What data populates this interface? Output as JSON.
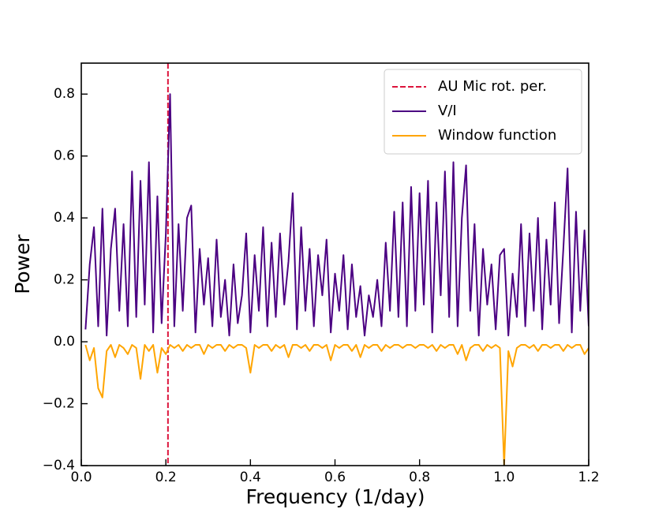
{
  "chart_data": {
    "type": "line",
    "xlabel": "Frequency (1/day)",
    "ylabel": "Power",
    "xlim": [
      0,
      1.2
    ],
    "ylim": [
      -0.4,
      0.9
    ],
    "xticks": [
      {
        "value": 0,
        "label": "0.0"
      },
      0.2,
      0.4,
      0.6,
      0.8,
      {
        "value": 1,
        "label": "1.0"
      },
      1.2
    ],
    "yticks": [
      {
        "value": -0.4,
        "label": "−0.4"
      },
      {
        "value": -0.2,
        "label": "−0.2"
      },
      {
        "value": 0,
        "label": "0.0"
      },
      0.2,
      0.4,
      0.6,
      0.8
    ],
    "legend": "upper right",
    "vlines": [
      {
        "name": "AU Mic rot. per.",
        "x": 0.205,
        "color": "#dc143c",
        "style": "dashed"
      }
    ],
    "x": [
      0.01,
      0.02,
      0.03,
      0.04,
      0.05,
      0.06,
      0.07,
      0.08,
      0.09,
      0.1,
      0.11,
      0.12,
      0.13,
      0.14,
      0.15,
      0.16,
      0.17,
      0.18,
      0.19,
      0.2,
      0.21,
      0.22,
      0.23,
      0.24,
      0.25,
      0.26,
      0.27,
      0.28,
      0.29,
      0.3,
      0.31,
      0.32,
      0.33,
      0.34,
      0.35,
      0.36,
      0.37,
      0.38,
      0.39,
      0.4,
      0.41,
      0.42,
      0.43,
      0.44,
      0.45,
      0.46,
      0.47,
      0.48,
      0.49,
      0.5,
      0.51,
      0.52,
      0.53,
      0.54,
      0.55,
      0.56,
      0.57,
      0.58,
      0.59,
      0.6,
      0.61,
      0.62,
      0.63,
      0.64,
      0.65,
      0.66,
      0.67,
      0.68,
      0.69,
      0.7,
      0.71,
      0.72,
      0.73,
      0.74,
      0.75,
      0.76,
      0.77,
      0.78,
      0.79,
      0.8,
      0.81,
      0.82,
      0.83,
      0.84,
      0.85,
      0.86,
      0.87,
      0.88,
      0.89,
      0.9,
      0.91,
      0.92,
      0.93,
      0.94,
      0.95,
      0.96,
      0.97,
      0.98,
      0.99,
      1,
      1.01,
      1.02,
      1.03,
      1.04,
      1.05,
      1.06,
      1.07,
      1.08,
      1.09,
      1.1,
      1.11,
      1.12,
      1.13,
      1.14,
      1.15,
      1.16,
      1.17,
      1.18,
      1.19,
      1.2
    ],
    "series": [
      {
        "name": "V/I",
        "color": "#4b0082",
        "values": [
          0.04,
          0.25,
          0.37,
          0.05,
          0.43,
          0.02,
          0.3,
          0.43,
          0.1,
          0.38,
          0.05,
          0.55,
          0.08,
          0.52,
          0.12,
          0.58,
          0.03,
          0.47,
          0.06,
          0.35,
          0.8,
          0.05,
          0.38,
          0.1,
          0.4,
          0.44,
          0.03,
          0.3,
          0.12,
          0.27,
          0.05,
          0.33,
          0.08,
          0.2,
          0.02,
          0.25,
          0.06,
          0.15,
          0.35,
          0.03,
          0.28,
          0.1,
          0.37,
          0.05,
          0.32,
          0.08,
          0.35,
          0.12,
          0.26,
          0.48,
          0.04,
          0.37,
          0.1,
          0.3,
          0.05,
          0.28,
          0.15,
          0.33,
          0.03,
          0.22,
          0.1,
          0.28,
          0.04,
          0.25,
          0.08,
          0.18,
          0.02,
          0.15,
          0.08,
          0.2,
          0.05,
          0.32,
          0.1,
          0.42,
          0.08,
          0.45,
          0.05,
          0.5,
          0.1,
          0.48,
          0.12,
          0.52,
          0.03,
          0.45,
          0.15,
          0.55,
          0.08,
          0.58,
          0.05,
          0.4,
          0.57,
          0.1,
          0.38,
          0.02,
          0.3,
          0.12,
          0.25,
          0.04,
          0.28,
          0.3,
          0.02,
          0.22,
          0.08,
          0.38,
          0.05,
          0.35,
          0.1,
          0.4,
          0.04,
          0.33,
          0.12,
          0.45,
          0.06,
          0.3,
          0.56,
          0.03,
          0.42,
          0.1,
          0.36,
          0.05
        ]
      },
      {
        "name": "Window function",
        "color": "#ffa500",
        "values": [
          -0.01,
          -0.06,
          -0.02,
          -0.15,
          -0.18,
          -0.03,
          -0.01,
          -0.05,
          -0.01,
          -0.02,
          -0.04,
          -0.01,
          -0.02,
          -0.12,
          -0.01,
          -0.03,
          -0.01,
          -0.1,
          -0.02,
          -0.04,
          -0.01,
          -0.02,
          -0.01,
          -0.03,
          -0.01,
          -0.02,
          -0.01,
          -0.01,
          -0.04,
          -0.01,
          -0.02,
          -0.01,
          -0.01,
          -0.03,
          -0.01,
          -0.02,
          -0.01,
          -0.01,
          -0.02,
          -0.1,
          -0.01,
          -0.02,
          -0.01,
          -0.01,
          -0.03,
          -0.01,
          -0.02,
          -0.01,
          -0.05,
          -0.01,
          -0.01,
          -0.02,
          -0.01,
          -0.03,
          -0.01,
          -0.01,
          -0.02,
          -0.01,
          -0.06,
          -0.01,
          -0.02,
          -0.01,
          -0.01,
          -0.03,
          -0.01,
          -0.05,
          -0.01,
          -0.02,
          -0.01,
          -0.01,
          -0.03,
          -0.01,
          -0.02,
          -0.01,
          -0.01,
          -0.02,
          -0.01,
          -0.01,
          -0.02,
          -0.01,
          -0.01,
          -0.02,
          -0.01,
          -0.03,
          -0.01,
          -0.02,
          -0.01,
          -0.01,
          -0.04,
          -0.01,
          -0.06,
          -0.02,
          -0.01,
          -0.01,
          -0.03,
          -0.01,
          -0.02,
          -0.01,
          -0.02,
          -0.4,
          -0.03,
          -0.08,
          -0.02,
          -0.01,
          -0.01,
          -0.02,
          -0.01,
          -0.03,
          -0.01,
          -0.01,
          -0.02,
          -0.01,
          -0.01,
          -0.03,
          -0.01,
          -0.02,
          -0.01,
          -0.01,
          -0.04,
          -0.02
        ]
      }
    ]
  }
}
